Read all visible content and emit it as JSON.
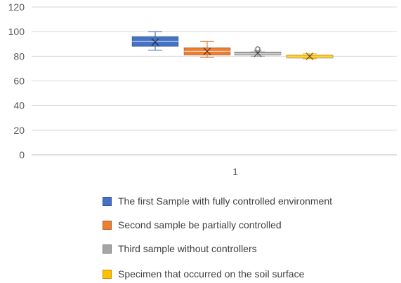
{
  "chart_data": {
    "type": "boxplot",
    "title": "",
    "xlabel": "",
    "ylabel": "",
    "ylim": [
      0,
      120
    ],
    "yticks": [
      0,
      20,
      40,
      60,
      80,
      100,
      120
    ],
    "categories": [
      "1"
    ],
    "grid": true,
    "legend_position": "bottom",
    "series": [
      {
        "name": "The first Sample with fully controlled environment",
        "color": "#4472C4",
        "min": 85,
        "q1": 88,
        "median": 92,
        "mean": 91.5,
        "q3": 96,
        "max": 100
      },
      {
        "name": "Second sample be partially controlled",
        "color": "#ED7D31",
        "min": 79,
        "q1": 81,
        "median": 84,
        "mean": 84,
        "q3": 87,
        "max": 92
      },
      {
        "name": "Third sample without controllers",
        "color": "#A5A5A5",
        "min": 80,
        "q1": 81,
        "median": 82,
        "mean": 82.5,
        "q3": 83.5,
        "max": 83.5,
        "outliers": [
          86
        ]
      },
      {
        "name": "Specimen that occurred on the soil surface",
        "color": "#FFC000",
        "min": 78,
        "q1": 78.5,
        "median": 79.5,
        "mean": 80,
        "q3": 81,
        "max": 82
      }
    ]
  }
}
